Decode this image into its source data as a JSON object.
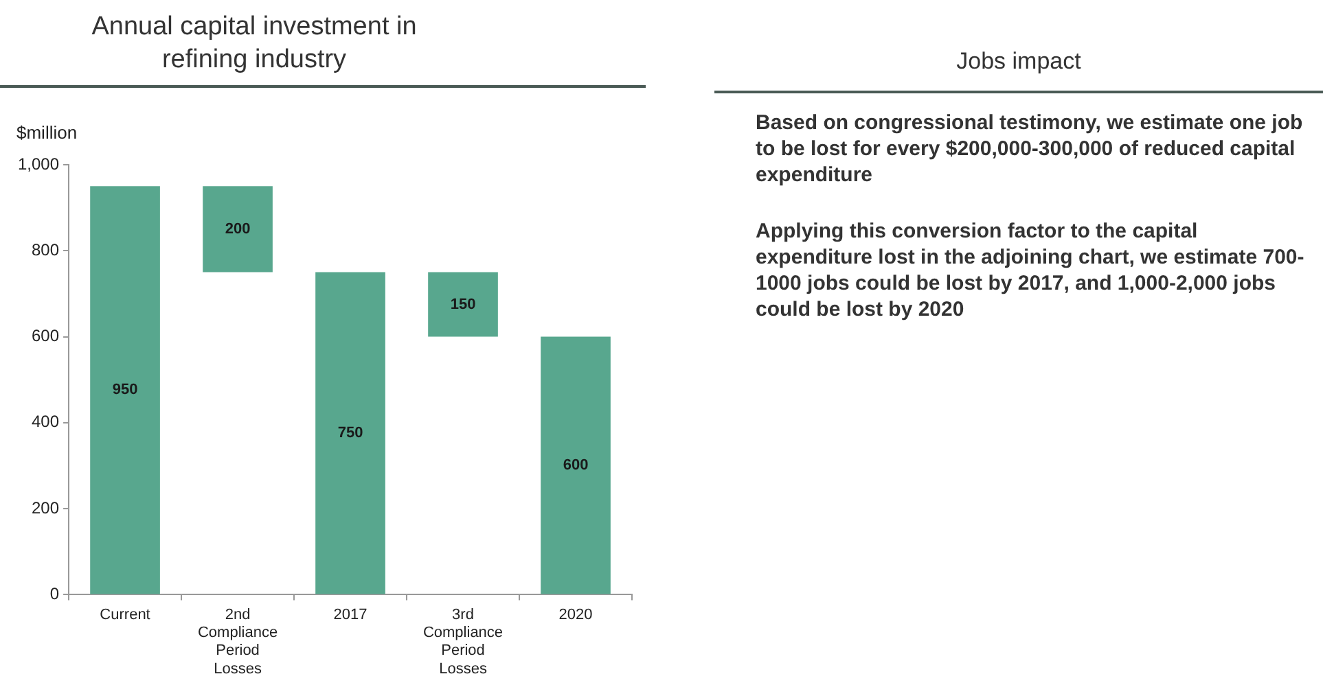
{
  "chart_data": [
    {
      "type": "bar",
      "title": "Annual capital investment in refining industry",
      "ylabel": "$million",
      "categories": [
        "Current",
        "2nd Compliance Period Losses",
        "2017",
        "3rd Compliance Period Losses",
        "2020"
      ],
      "values": [
        950,
        200,
        750,
        150,
        600
      ],
      "base": [
        0,
        750,
        0,
        600,
        0
      ],
      "color": "#58a78e",
      "ylim": [
        0,
        1000
      ],
      "yticks": [
        0,
        {
          "value": 200,
          "label": "200"
        },
        {
          "value": 400,
          "label": "400"
        },
        {
          "value": 600,
          "label": "600"
        },
        {
          "value": 800,
          "label": "800"
        },
        {
          "value": 1000,
          "label": "1,000"
        }
      ],
      "data_labels": true
    },
    {
      "type": "other",
      "title": "Jobs impact",
      "annotations": [
        "Based on congressional testimony, we estimate one job to be lost for every $200,000-300,000 of reduced capital expenditure",
        "Applying this conversion factor to the capital expenditure lost in the adjoining chart, we estimate 700-1000 jobs could be lost by 2017, and 1,000-2,000 jobs could be lost by 2020"
      ]
    }
  ]
}
